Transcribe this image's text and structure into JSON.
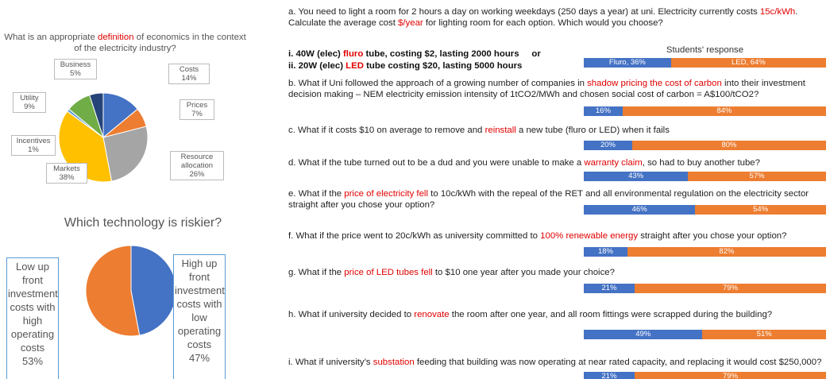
{
  "chart_data": [
    {
      "type": "pie",
      "title_parts": [
        {
          "text": "What is an appropriate "
        },
        {
          "text": "definition",
          "color": "#e00000"
        },
        {
          "text": " of economics in the context of the electricity industry?"
        }
      ],
      "categories": [
        "Costs",
        "Prices",
        "Resource allocation",
        "Markets",
        "Incentives",
        "Utility",
        "Business"
      ],
      "values": [
        14,
        7,
        26,
        38,
        1,
        9,
        5
      ],
      "value_labels": [
        "14%",
        "7%",
        "26%",
        "38%",
        "1%",
        "9%",
        "5%"
      ],
      "colors": [
        "#4472c4",
        "#ed7d31",
        "#a5a5a5",
        "#ffc000",
        "#5b9bd5",
        "#70ad47",
        "#264478"
      ]
    },
    {
      "type": "pie",
      "title": "Which technology is riskier?",
      "categories": [
        "High up front investment costs with low operating costs",
        "Low up front investment costs with high operating costs"
      ],
      "values": [
        47,
        53
      ],
      "value_labels": [
        "47%",
        "53%"
      ],
      "colors": [
        "#4472c4",
        "#ed7d31"
      ]
    },
    {
      "type": "stacked-bar-100",
      "title": "Students' response",
      "categories": [
        null,
        null,
        null,
        null,
        null,
        null,
        null,
        null,
        null
      ],
      "series": [
        {
          "name": "Fluro",
          "color": "#4472c4",
          "values": [
            36,
            16,
            20,
            43,
            46,
            18,
            21,
            49,
            21
          ],
          "value_labels": [
            "Fluro, 36%",
            "16%",
            "20%",
            "43%",
            "46%",
            "18%",
            "21%",
            "49%",
            "21%"
          ]
        },
        {
          "name": "LED",
          "color": "#ed7d31",
          "values": [
            64,
            84,
            80,
            57,
            54,
            82,
            79,
            51,
            79
          ],
          "value_labels": [
            "LED, 64%",
            "84%",
            "80%",
            "57%",
            "54%",
            "82%",
            "79%",
            "51%",
            "79%"
          ]
        }
      ]
    }
  ],
  "questions": [
    {
      "parts": [
        {
          "text": "a. You need to light a room for 2 hours a day on working weekdays (250 days a year) at uni. Electricity currently costs "
        },
        {
          "text": "15c/kWh",
          "color": "#e00000"
        },
        {
          "text": ".  Calculate the average cost "
        },
        {
          "text": "$/year",
          "color": "#e00000"
        },
        {
          "text": " for lighting room for each option. Which would you choose?"
        }
      ]
    },
    {
      "parts": [
        {
          "text": "b. What if Uni followed the approach of a growing number of companies in "
        },
        {
          "text": "shadow pricing the cost of carbon",
          "color": "#e00000"
        },
        {
          "text": " into their investment decision making – NEM electricity emission intensity of 1tCO2/MWh and chosen social cost of carbon = A$100/tCO2?"
        }
      ]
    },
    {
      "parts": [
        {
          "text": "c. What if it costs $10 on average to remove and "
        },
        {
          "text": "reinstall",
          "color": "#e00000"
        },
        {
          "text": " a new tube (fluro or LED) when it fails"
        }
      ]
    },
    {
      "parts": [
        {
          "text": "d. What if the tube turned out to be a dud and you were unable to make a "
        },
        {
          "text": "warranty claim",
          "color": "#e00000"
        },
        {
          "text": ", so had to buy another tube?"
        }
      ]
    },
    {
      "parts": [
        {
          "text": "e. What if the "
        },
        {
          "text": "price of electricity fell",
          "color": "#e00000"
        },
        {
          "text": " to 10c/kWh with the repeal of the RET and all environmental regulation on the electricity sector straight after you chose your option?"
        }
      ]
    },
    {
      "parts": [
        {
          "text": "f. What if the price went to 20c/kWh as university committed to "
        },
        {
          "text": "100% renewable energy",
          "color": "#e00000"
        },
        {
          "text": " straight after you chose your option?"
        }
      ]
    },
    {
      "parts": [
        {
          "text": "g. What if the "
        },
        {
          "text": "price of LED tubes fell",
          "color": "#e00000"
        },
        {
          "text": " to $10 one year after you made your choice?"
        }
      ]
    },
    {
      "parts": [
        {
          "text": "h. What if university decided to "
        },
        {
          "text": "renovate",
          "color": "#e00000"
        },
        {
          "text": " the room after one year, and all room fittings were scrapped during the building?"
        }
      ]
    },
    {
      "parts": [
        {
          "text": "i. What if university’s "
        },
        {
          "text": "substation",
          "color": "#e00000"
        },
        {
          "text": " feeding that building was now operating at near rated capacity, and replacing it would cost $250,000?"
        }
      ]
    }
  ],
  "options": [
    {
      "parts": [
        {
          "text": "i. 40W (elec) "
        },
        {
          "text": "fluro",
          "color": "#e00000"
        },
        {
          "text": " tube, costing $2, lasting 2000 hours     or"
        }
      ]
    },
    {
      "parts": [
        {
          "text": "ii. 20W (elec) "
        },
        {
          "text": "LED",
          "color": "#e00000"
        },
        {
          "text": " tube costing $20, lasting 5000 hours"
        }
      ]
    }
  ]
}
